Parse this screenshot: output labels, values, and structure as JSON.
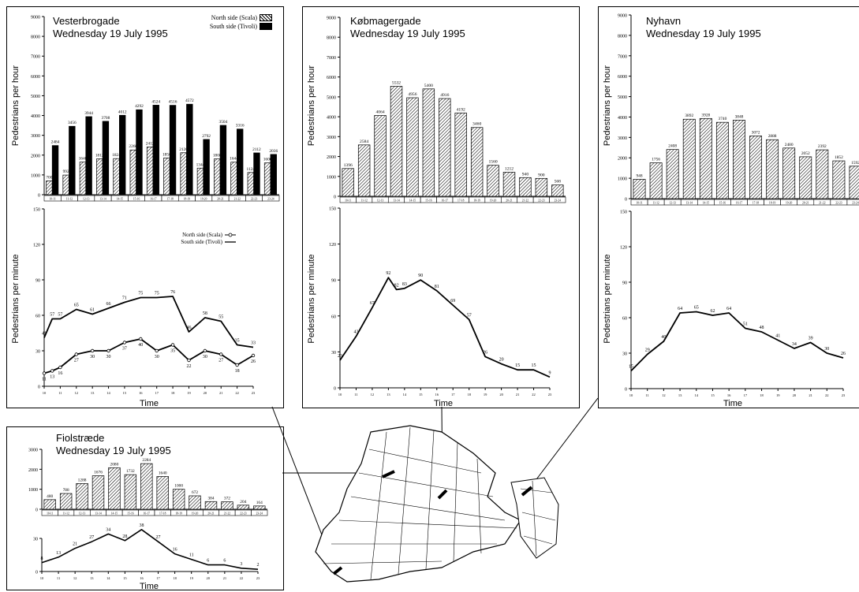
{
  "colors": {
    "ink": "#000000",
    "paper": "#ffffff"
  },
  "common": {
    "ylabel_top": "Pedestrians per hour",
    "ylabel_bottom": "Pedestrians per minute",
    "xlabel": "Time",
    "hour_ticks": [
      "10",
      "11",
      "12",
      "13",
      "14",
      "15",
      "16",
      "17",
      "18",
      "19",
      "20",
      "21",
      "22",
      "23"
    ],
    "interval_labels": [
      "10-11",
      "11-12",
      "12-13",
      "13-14",
      "14-15",
      "15-16",
      "16-17",
      "17-18",
      "18-19",
      "19-20",
      "20-21",
      "21-22",
      "22-23",
      "23-24"
    ]
  },
  "panels": {
    "vesterbrogade": {
      "title": "Vesterbrogade",
      "subtitle": "Wednesday 19 July 1995",
      "legend_bar": {
        "north": "North side (Scala)",
        "south": "South side (Tivoli)"
      },
      "legend_line": {
        "north": "North side (Scala)",
        "south": "South side (Tivoli)"
      }
    },
    "kobmagergade": {
      "title": "Købmagergade",
      "subtitle": "Wednesday 19 July 1995"
    },
    "nyhavn": {
      "title": "Nyhavn",
      "subtitle": "Wednesday 19 July 1995"
    },
    "fiolstraede": {
      "title": "Fiolstræde",
      "subtitle": "Wednesday 19 July 1995"
    }
  },
  "chart_data": [
    {
      "id": "vesterbrogade-hourly",
      "type": "bar",
      "title": "Vesterbrogade",
      "subtitle": "Wednesday 19 July 1995",
      "ylabel": "Pedestrians per hour",
      "ylim": [
        0,
        9000
      ],
      "yticks": [
        0,
        1000,
        2000,
        3000,
        4000,
        5000,
        6000,
        7000,
        8000,
        9000
      ],
      "categories": [
        "10-11",
        "11-12",
        "12-13",
        "13-14",
        "14-15",
        "15-16",
        "16-17",
        "17-18",
        "18-19",
        "19-20",
        "20-21",
        "21-22",
        "22-23",
        "23-24"
      ],
      "series": [
        {
          "name": "North side (Scala)",
          "values": [
            700,
            992,
            1648,
            1812,
            1824,
            2260,
            2412,
            1856,
            2120,
            1344,
            1808,
            1644,
            1124,
            1606
          ]
        },
        {
          "name": "South side (Tivoli)",
          "values": [
            2484,
            3456,
            3944,
            3708,
            4012,
            4292,
            4524,
            4516,
            4572,
            2792,
            3504,
            3316,
            2112,
            2036
          ]
        }
      ],
      "legend": "top-right"
    },
    {
      "id": "vesterbrogade-minute",
      "type": "line",
      "ylabel": "Pedestrians per minute",
      "xlabel": "Time",
      "ylim": [
        0,
        150
      ],
      "yticks": [
        0,
        30,
        60,
        90,
        120,
        150
      ],
      "x": [
        10,
        11,
        12,
        13,
        14,
        15,
        16,
        17,
        18,
        19,
        20,
        21,
        22,
        23
      ],
      "series": [
        {
          "name": "North side (Scala)",
          "x": [
            10,
            10.5,
            11,
            12,
            13,
            14,
            15,
            16,
            17,
            18,
            19,
            20,
            21,
            22,
            23
          ],
          "values": [
            11,
            13,
            16,
            27,
            30,
            30,
            37,
            40,
            30,
            35,
            22,
            30,
            27,
            18,
            26
          ]
        },
        {
          "name": "South side (Tivoli)",
          "x": [
            10,
            10.5,
            11,
            12,
            13,
            14,
            15,
            16,
            17,
            18,
            19,
            20,
            21,
            22,
            23
          ],
          "values": [
            41,
            57,
            57,
            65,
            61,
            66,
            71,
            75,
            75,
            76,
            46,
            58,
            55,
            35,
            33
          ]
        }
      ],
      "legend": "top-right"
    },
    {
      "id": "kobmagergade-hourly",
      "type": "bar",
      "title": "Købmagergade",
      "subtitle": "Wednesday 19 July 1995",
      "ylabel": "Pedestrians per hour",
      "ylim": [
        0,
        9000
      ],
      "yticks": [
        0,
        1000,
        2000,
        3000,
        4000,
        5000,
        6000,
        7000,
        8000,
        9000
      ],
      "categories": [
        "10-11",
        "11-12",
        "12-13",
        "13-14",
        "14-15",
        "15-16",
        "16-17",
        "17-18",
        "18-19",
        "19-20",
        "20-21",
        "21-22",
        "22-23",
        "23-24"
      ],
      "values": [
        1396,
        2584,
        4064,
        5532,
        4956,
        5400,
        4916,
        4192,
        3460,
        1560,
        1212,
        940,
        900,
        568
      ]
    },
    {
      "id": "kobmagergade-minute",
      "type": "line",
      "ylabel": "Pedestrians per minute",
      "xlabel": "Time",
      "ylim": [
        0,
        150
      ],
      "yticks": [
        0,
        30,
        60,
        90,
        120,
        150
      ],
      "x": [
        10,
        11,
        12,
        13,
        13.5,
        14,
        15,
        16,
        17,
        18,
        19,
        20,
        21,
        22,
        23
      ],
      "values": [
        23,
        43,
        67,
        92,
        82,
        83,
        90,
        81,
        69,
        57,
        26,
        20,
        15,
        15,
        9
      ]
    },
    {
      "id": "nyhavn-hourly",
      "type": "bar",
      "title": "Nyhavn",
      "subtitle": "Wednesday 19 July 1995",
      "ylabel": "Pedestrians per hour",
      "ylim": [
        0,
        9000
      ],
      "yticks": [
        0,
        1000,
        2000,
        3000,
        4000,
        5000,
        6000,
        7000,
        8000,
        9000
      ],
      "categories": [
        "10-11",
        "11-12",
        "12-13",
        "13-14",
        "14-15",
        "15-16",
        "16-17",
        "17-18",
        "18-19",
        "19-20",
        "20-21",
        "21-22",
        "22-23",
        "23-24"
      ],
      "values": [
        948,
        1756,
        2408,
        3892,
        3928,
        3740,
        3848,
        3072,
        2888,
        2480,
        2052,
        2392,
        1852,
        1592
      ]
    },
    {
      "id": "nyhavn-minute",
      "type": "line",
      "ylabel": "Pedestrians per minute",
      "xlabel": "Time",
      "ylim": [
        0,
        150
      ],
      "yticks": [
        0,
        30,
        60,
        90,
        120,
        150
      ],
      "x": [
        10,
        11,
        12,
        13,
        14,
        15,
        16,
        17,
        18,
        19,
        20,
        21,
        22,
        23
      ],
      "values": [
        15,
        29,
        40,
        64,
        65,
        62,
        64,
        51,
        48,
        41,
        34,
        39,
        30,
        26
      ]
    },
    {
      "id": "fiolstraede-hourly",
      "type": "bar",
      "title": "Fiolstræde",
      "subtitle": "Wednesday 19 July 1995",
      "ylim": [
        0,
        3000
      ],
      "yticks": [
        0,
        1000,
        2000,
        3000
      ],
      "categories": [
        "10-11",
        "11-12",
        "12-13",
        "13-14",
        "14-15",
        "15-16",
        "16-17",
        "17-18",
        "18-19",
        "19-20",
        "20-21",
        "21-22",
        "22-23",
        "23-24"
      ],
      "values": [
        480,
        788,
        1288,
        1676,
        2080,
        1732,
        2284,
        1640,
        1000,
        672,
        384,
        372,
        204,
        164
      ]
    },
    {
      "id": "fiolstraede-minute",
      "type": "line",
      "xlabel": "Time",
      "ylim": [
        0,
        30
      ],
      "yticks": [
        0,
        30
      ],
      "x": [
        10,
        11,
        12,
        13,
        14,
        15,
        16,
        17,
        18,
        19,
        20,
        21,
        22,
        23
      ],
      "values": [
        8,
        13,
        21,
        27,
        34,
        28,
        38,
        27,
        16,
        11,
        6,
        6,
        3,
        2
      ]
    }
  ]
}
